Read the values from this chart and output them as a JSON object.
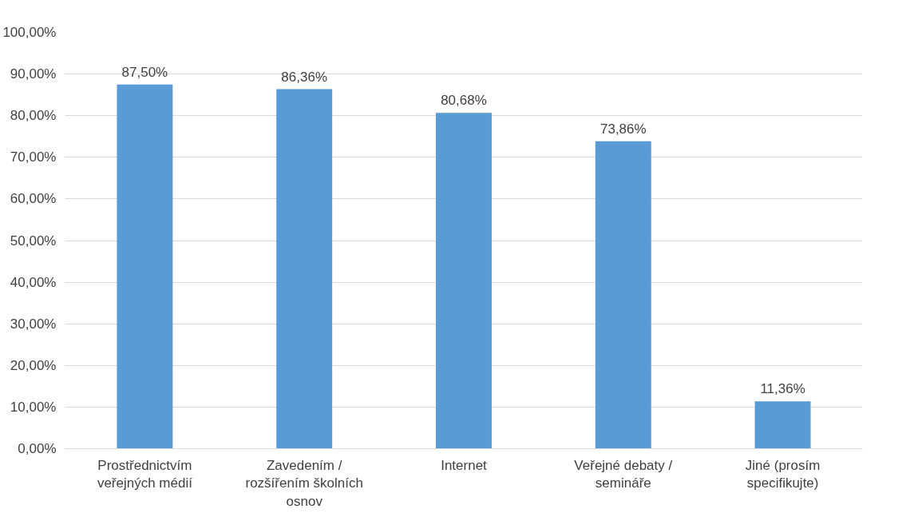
{
  "chart_data": {
    "type": "bar",
    "categories": [
      "Prostřednictvím veřejných médií",
      "Zavedením / rozšířením školních osnov",
      "Internet",
      "Veřejné debaty / semináře",
      "Jiné (prosím specifikujte)"
    ],
    "values": [
      87.5,
      86.36,
      80.68,
      73.86,
      11.36
    ],
    "value_labels": [
      "87,50%",
      "86,36%",
      "80,68%",
      "73,86%",
      "11,36%"
    ],
    "color": "#5b9bd5",
    "ylim": [
      0,
      100
    ],
    "yticks": [
      {
        "value": 0,
        "label": "0,00%"
      },
      {
        "value": 10,
        "label": "10,00%"
      },
      {
        "value": 20,
        "label": "20,00%"
      },
      {
        "value": 30,
        "label": "30,00%"
      },
      {
        "value": 40,
        "label": "40,00%"
      },
      {
        "value": 50,
        "label": "50,00%"
      },
      {
        "value": 60,
        "label": "60,00%"
      },
      {
        "value": 70,
        "label": "70,00%"
      },
      {
        "value": 80,
        "label": "80,00%"
      },
      {
        "value": 90,
        "label": "90,00%"
      },
      {
        "value": 100,
        "label": "100,00%"
      }
    ],
    "grid": "y"
  }
}
